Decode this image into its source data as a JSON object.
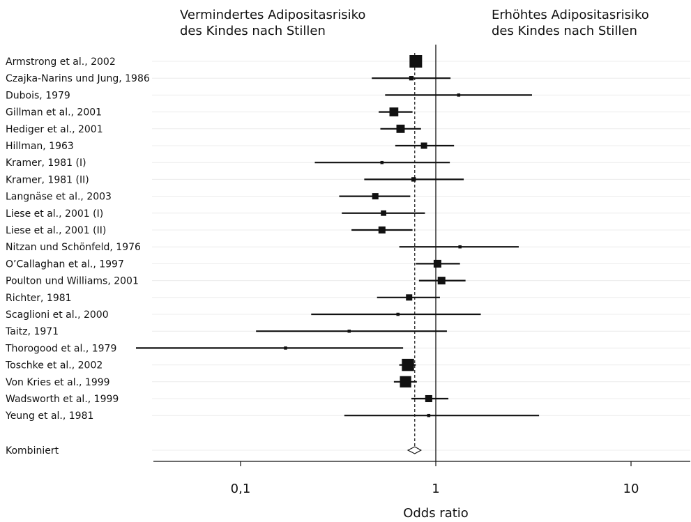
{
  "chart_data": {
    "type": "forest",
    "header_left": [
      "Vermindertes Adipositasrisiko",
      "des Kindes nach Stillen"
    ],
    "header_right": [
      "Erhöhtes Adipositasrisiko",
      "des Kindes nach Stillen"
    ],
    "xlabel": "Odds ratio",
    "x_scale": "log",
    "xlim": [
      0.037,
      20
    ],
    "xticks": [
      {
        "value": 0.1,
        "label": "0,1"
      },
      {
        "value": 1,
        "label": "1"
      },
      {
        "value": 10,
        "label": "10"
      }
    ],
    "reference_line": 1,
    "pooled_line": 0.78,
    "studies": [
      {
        "label": "Armstrong et al., 2002",
        "or": 0.79,
        "lower": 0.74,
        "upper": 0.84,
        "weight": 16
      },
      {
        "label": "Czajka-Narins und Jung, 1986",
        "or": 0.75,
        "lower": 0.47,
        "upper": 1.19,
        "weight": 2
      },
      {
        "label": "Dubois, 1979",
        "or": 1.31,
        "lower": 0.55,
        "upper": 3.11,
        "weight": 1
      },
      {
        "label": "Gillman et al., 2001",
        "or": 0.61,
        "lower": 0.51,
        "upper": 0.76,
        "weight": 8
      },
      {
        "label": "Hediger et al., 2001",
        "or": 0.66,
        "lower": 0.52,
        "upper": 0.84,
        "weight": 7
      },
      {
        "label": "Hillman, 1963",
        "or": 0.87,
        "lower": 0.62,
        "upper": 1.24,
        "weight": 4
      },
      {
        "label": "Kramer, 1981 (I)",
        "or": 0.53,
        "lower": 0.24,
        "upper": 1.18,
        "weight": 1
      },
      {
        "label": "Kramer, 1981 (II)",
        "or": 0.77,
        "lower": 0.43,
        "upper": 1.39,
        "weight": 2
      },
      {
        "label": "Langnäse et al., 2003",
        "or": 0.49,
        "lower": 0.32,
        "upper": 0.74,
        "weight": 4
      },
      {
        "label": "Liese et al., 2001 (I)",
        "or": 0.54,
        "lower": 0.33,
        "upper": 0.88,
        "weight": 3
      },
      {
        "label": "Liese et al., 2001 (II)",
        "or": 0.53,
        "lower": 0.37,
        "upper": 0.76,
        "weight": 5
      },
      {
        "label": "Nitzan und Schönfeld, 1976",
        "or": 1.33,
        "lower": 0.65,
        "upper": 2.66,
        "weight": 1
      },
      {
        "label": "O’Callaghan et al., 1997",
        "or": 1.02,
        "lower": 0.79,
        "upper": 1.33,
        "weight": 6
      },
      {
        "label": "Poulton und Williams, 2001",
        "or": 1.07,
        "lower": 0.82,
        "upper": 1.42,
        "weight": 6
      },
      {
        "label": "Richter, 1981",
        "or": 0.73,
        "lower": 0.5,
        "upper": 1.05,
        "weight": 4
      },
      {
        "label": "Scaglioni et al., 2000",
        "or": 0.64,
        "lower": 0.23,
        "upper": 1.7,
        "weight": 1
      },
      {
        "label": "Taitz, 1971",
        "or": 0.36,
        "lower": 0.12,
        "upper": 1.14,
        "weight": 1
      },
      {
        "label": "Thorogood et al., 1979",
        "or": 0.17,
        "lower": 0.029,
        "upper": 0.68,
        "weight": 1
      },
      {
        "label": "Toschke et al., 2002",
        "or": 0.72,
        "lower": 0.65,
        "upper": 0.79,
        "weight": 15
      },
      {
        "label": "Von Kries et al., 1999",
        "or": 0.7,
        "lower": 0.61,
        "upper": 0.8,
        "weight": 13
      },
      {
        "label": "Wadsworth et al., 1999",
        "or": 0.92,
        "lower": 0.75,
        "upper": 1.16,
        "weight": 5
      },
      {
        "label": "Yeung et al., 1981",
        "or": 0.92,
        "lower": 0.34,
        "upper": 3.38,
        "weight": 1
      }
    ],
    "combined": {
      "label": "Kombiniert",
      "or": 0.78,
      "lower": 0.72,
      "upper": 0.84
    }
  }
}
